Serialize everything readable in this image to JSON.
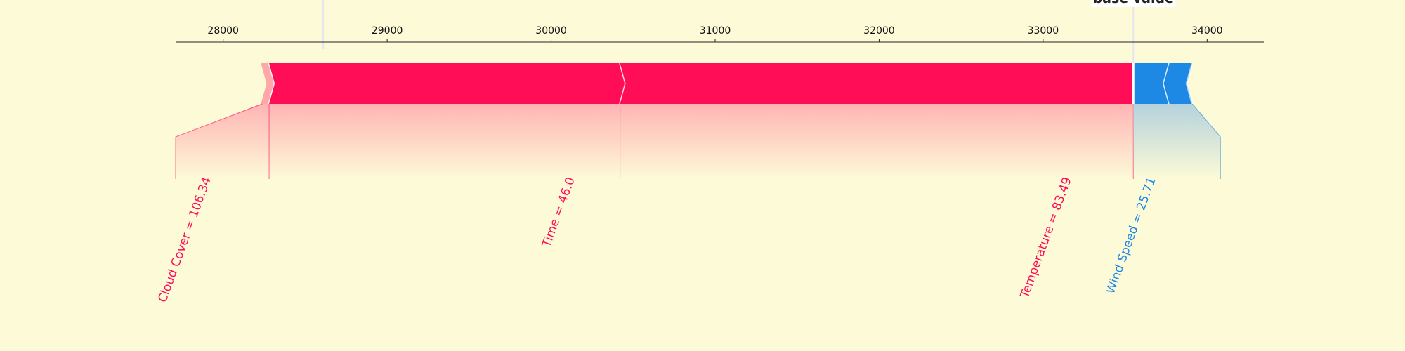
{
  "chart_data": {
    "type": "force",
    "top_label": "base value",
    "axis": {
      "xlim": [
        27710,
        34350
      ],
      "ticks": [
        28000,
        29000,
        30000,
        31000,
        32000,
        33000,
        34000
      ],
      "tick_labels": [
        "28000",
        "29000",
        "30000",
        "31000",
        "32000",
        "33000",
        "34000"
      ]
    },
    "base_value": 28610,
    "output_value": 33550,
    "start_value": 28230,
    "end_value": 33910,
    "positive_color": "#ff0d57",
    "negative_color": "#1e88e5",
    "positive_features": [
      {
        "label": "Cloud Cover = 106.34",
        "from": 28230,
        "to": 28280
      },
      {
        "label": "Time = 46.0",
        "from": 28280,
        "to": 30420
      },
      {
        "label": "Temperature = 83.49",
        "from": 30420,
        "to": 33550
      }
    ],
    "negative_features": [
      {
        "label": "Wind Speed = 25.71",
        "from": 33550,
        "to": 33770
      },
      {
        "label": "",
        "from": 33770,
        "to": 33910
      }
    ]
  }
}
